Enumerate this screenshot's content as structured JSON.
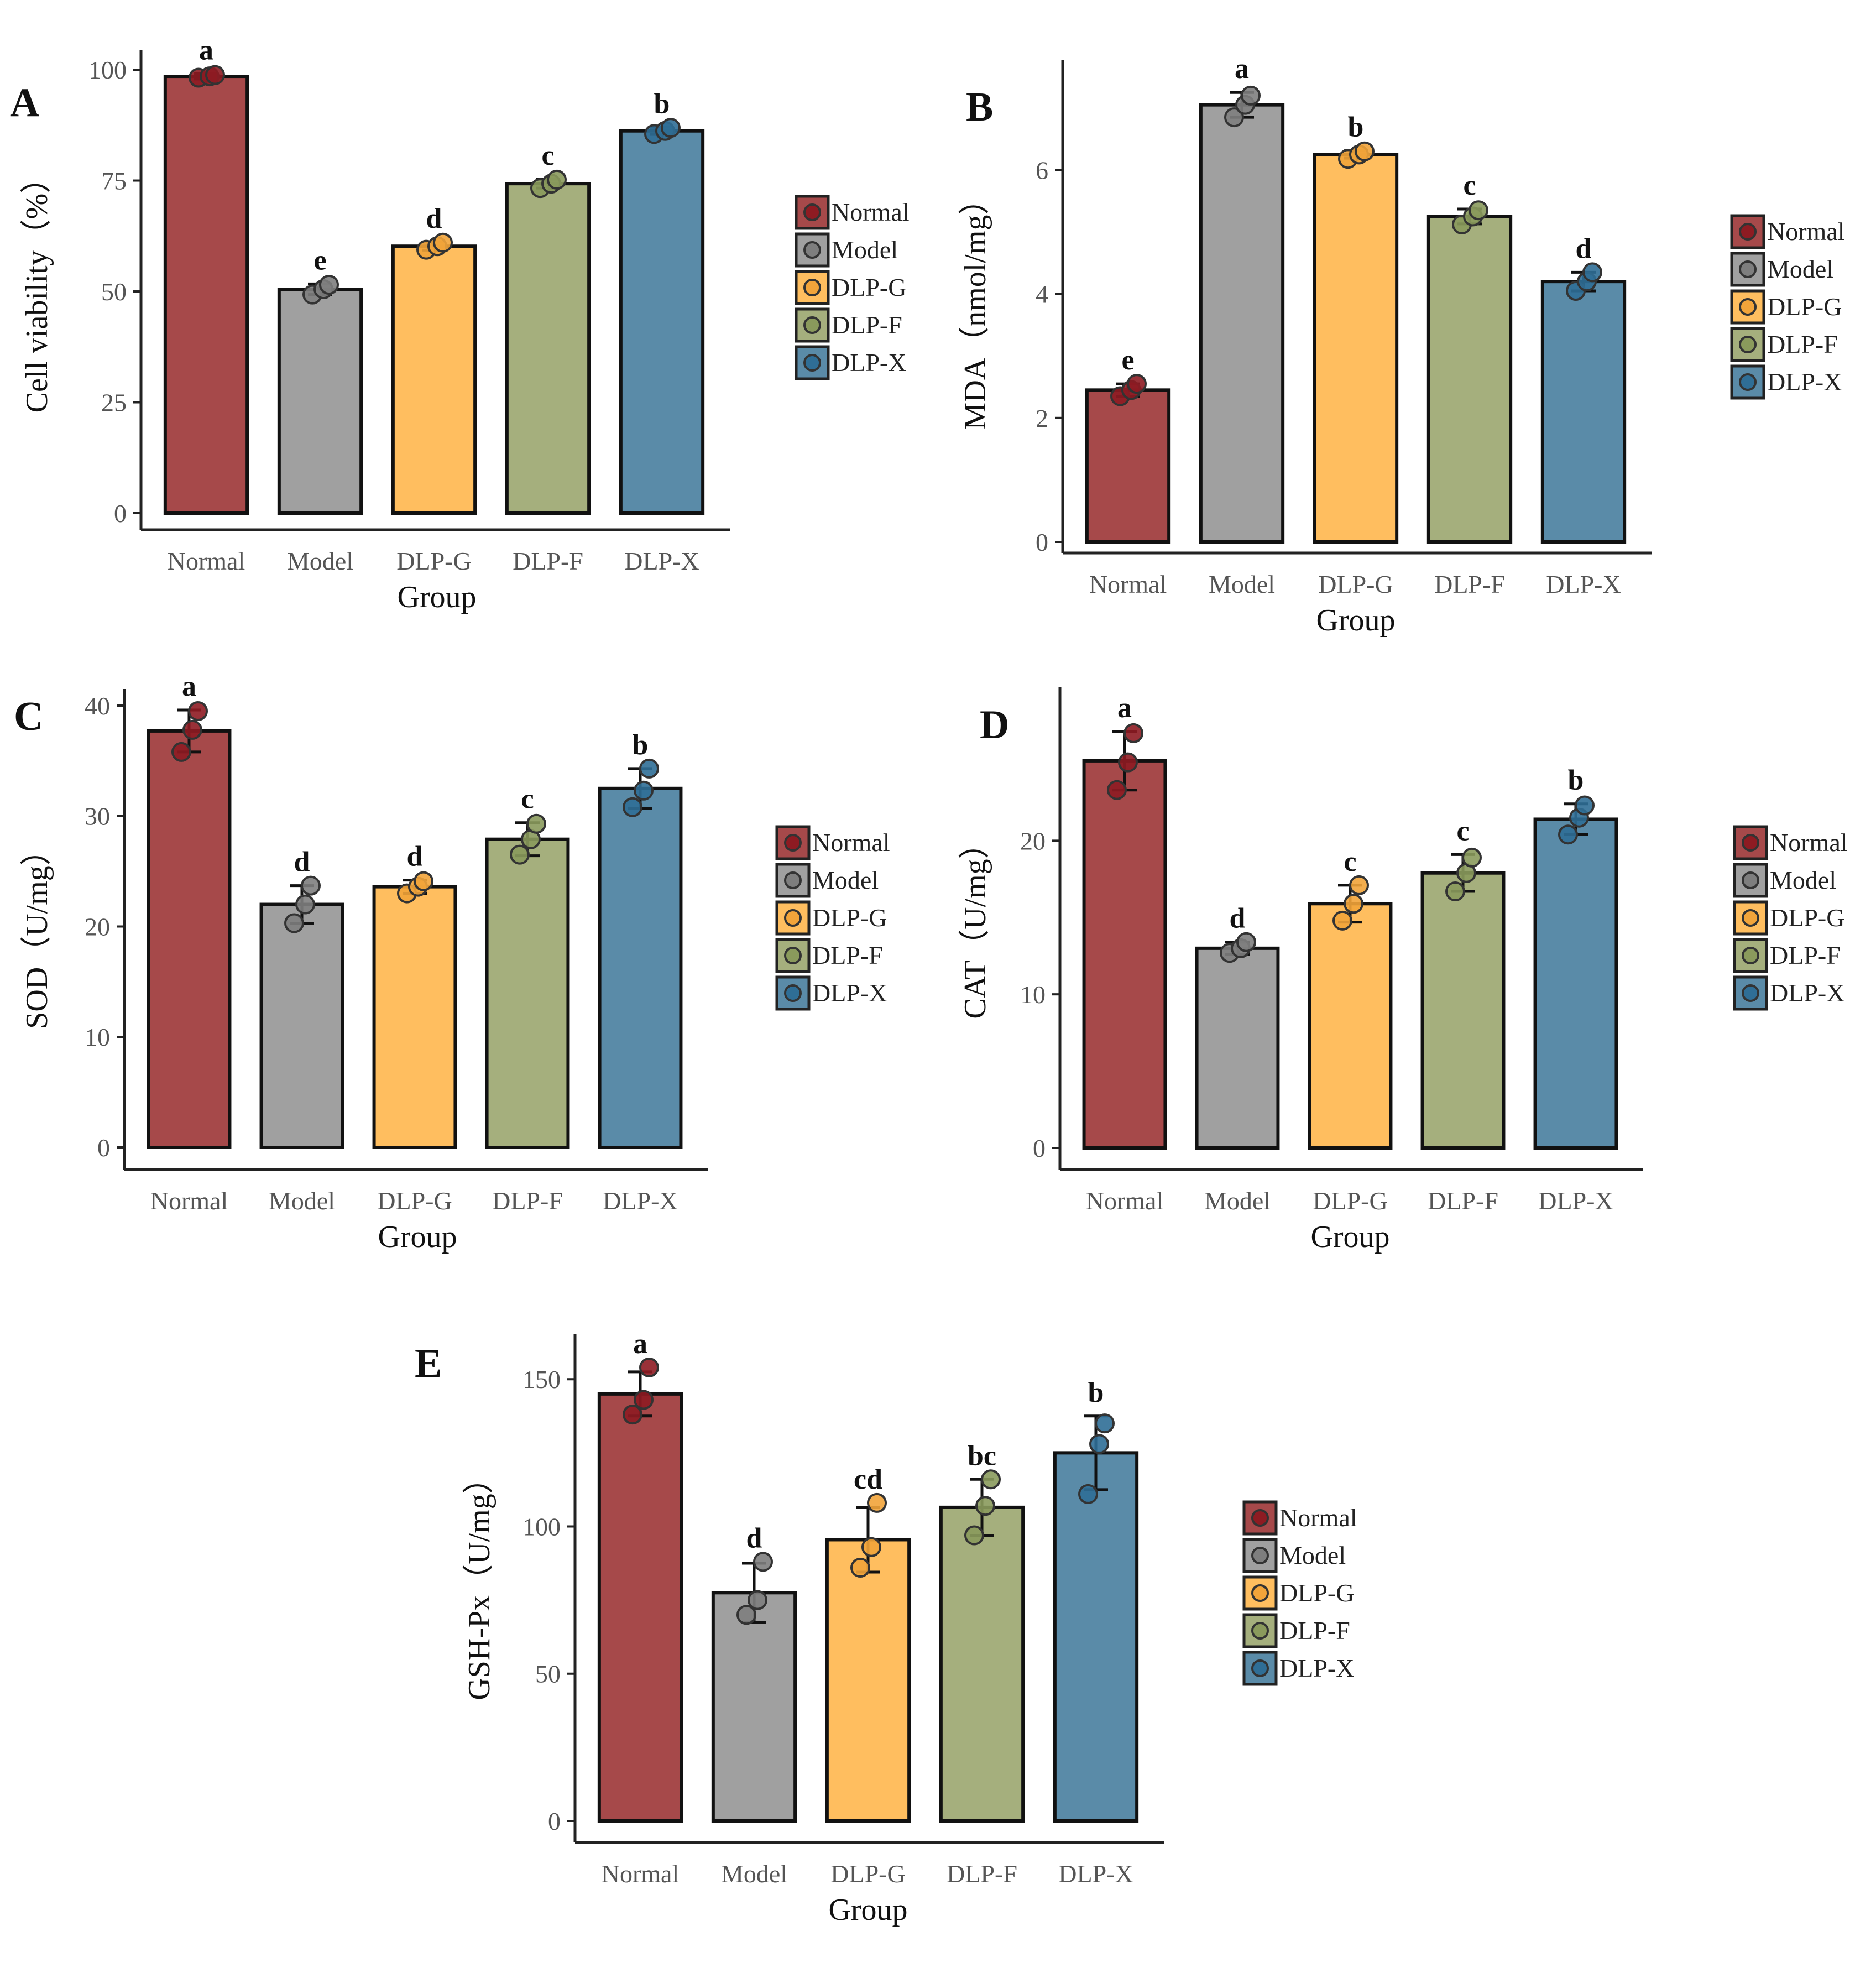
{
  "chart_data": [
    {
      "panel": "A",
      "type": "bar",
      "categories": [
        "Normal",
        "Model",
        "DLP-G",
        "DLP-F",
        "DLP-X"
      ],
      "values": [
        98.5,
        50.5,
        60.2,
        74.3,
        86.2
      ],
      "error": [
        0.6,
        1.2,
        0.9,
        1.0,
        0.8
      ],
      "points": [
        [
          98.2,
          98.5,
          98.8
        ],
        [
          49.3,
          50.5,
          51.5
        ],
        [
          59.4,
          60.2,
          61.0
        ],
        [
          73.3,
          74.3,
          75.2
        ],
        [
          85.5,
          86.2,
          86.9
        ]
      ],
      "significance": [
        "a",
        "e",
        "d",
        "c",
        "b"
      ],
      "yticks": [
        0,
        25,
        50,
        75,
        100
      ],
      "ylim": [
        0,
        102
      ],
      "xlabel": "Group",
      "ylabel": "Cell viability（%）",
      "legend_placement": "right"
    },
    {
      "panel": "B",
      "type": "bar",
      "categories": [
        "Normal",
        "Model",
        "DLP-G",
        "DLP-F",
        "DLP-X"
      ],
      "values": [
        2.45,
        7.05,
        6.25,
        5.25,
        4.2
      ],
      "error": [
        0.1,
        0.2,
        0.06,
        0.12,
        0.15
      ],
      "points": [
        [
          2.35,
          2.45,
          2.55
        ],
        [
          6.85,
          7.05,
          7.2
        ],
        [
          6.18,
          6.25,
          6.3
        ],
        [
          5.12,
          5.25,
          5.35
        ],
        [
          4.05,
          4.2,
          4.35
        ]
      ],
      "significance": [
        "e",
        "a",
        "b",
        "c",
        "d"
      ],
      "yticks": [
        0,
        2,
        4,
        6
      ],
      "ylim": [
        0,
        7.6
      ],
      "xlabel": "Group",
      "ylabel": "MDA（nmol/mg）",
      "legend_placement": "right"
    },
    {
      "panel": "C",
      "type": "bar",
      "categories": [
        "Normal",
        "Model",
        "DLP-G",
        "DLP-F",
        "DLP-X"
      ],
      "values": [
        37.7,
        22.0,
        23.6,
        27.9,
        32.5
      ],
      "error": [
        1.9,
        1.7,
        0.6,
        1.5,
        1.8
      ],
      "points": [
        [
          35.8,
          37.8,
          39.5
        ],
        [
          20.3,
          22.0,
          23.7
        ],
        [
          23.0,
          23.6,
          24.1
        ],
        [
          26.5,
          27.9,
          29.3
        ],
        [
          30.8,
          32.3,
          34.3
        ]
      ],
      "significance": [
        "a",
        "d",
        "d",
        "c",
        "b"
      ],
      "yticks": [
        0,
        10,
        20,
        30,
        40
      ],
      "ylim": [
        0,
        40.5
      ],
      "xlabel": "Group",
      "ylabel": "SOD（U/mg）",
      "legend_placement": "right"
    },
    {
      "panel": "D",
      "type": "bar",
      "categories": [
        "Normal",
        "Model",
        "DLP-G",
        "DLP-F",
        "DLP-X"
      ],
      "values": [
        25.2,
        13.0,
        15.9,
        17.9,
        21.4
      ],
      "error": [
        1.9,
        0.4,
        1.2,
        1.2,
        1.0
      ],
      "points": [
        [
          23.3,
          25.1,
          27.0
        ],
        [
          12.7,
          13.0,
          13.4
        ],
        [
          14.8,
          15.9,
          17.1
        ],
        [
          16.7,
          17.9,
          18.9
        ],
        [
          20.4,
          21.5,
          22.3
        ]
      ],
      "significance": [
        "a",
        "d",
        "c",
        "c",
        "b"
      ],
      "yticks": [
        0,
        10,
        20
      ],
      "ylim": [
        0,
        29.3
      ],
      "xlabel": "Group",
      "ylabel": "CAT（U/mg）",
      "legend_placement": "right"
    },
    {
      "panel": "E",
      "type": "bar",
      "categories": [
        "Normal",
        "Model",
        "DLP-G",
        "DLP-F",
        "DLP-X"
      ],
      "values": [
        145,
        77.5,
        95.5,
        106.5,
        125
      ],
      "error": [
        7.5,
        10,
        11,
        9.5,
        12.5
      ],
      "points": [
        [
          138,
          143,
          154
        ],
        [
          70,
          75,
          88
        ],
        [
          86,
          93,
          108
        ],
        [
          97,
          107,
          116
        ],
        [
          111,
          128,
          135
        ]
      ],
      "significance": [
        "a",
        "d",
        "cd",
        "bc",
        "b"
      ],
      "yticks": [
        0,
        50,
        100,
        150
      ],
      "ylim": [
        0,
        161.5
      ],
      "xlabel": "Group",
      "ylabel": "GSH-Px（U/mg）",
      "legend_placement": "right"
    }
  ],
  "legend": {
    "labels": [
      "Normal",
      "Model",
      "DLP-G",
      "DLP-F",
      "DLP-X"
    ]
  },
  "colors": {
    "bar_fill": [
      "#A6494A",
      "#A0A0A0",
      "#FFBE5F",
      "#A5AF7D",
      "#5A8BA8"
    ],
    "point_fill": [
      "#8E1B22",
      "#7E7E7E",
      "#F2A43A",
      "#8A9A5C",
      "#2F6E96"
    ],
    "stroke": "#111111"
  }
}
